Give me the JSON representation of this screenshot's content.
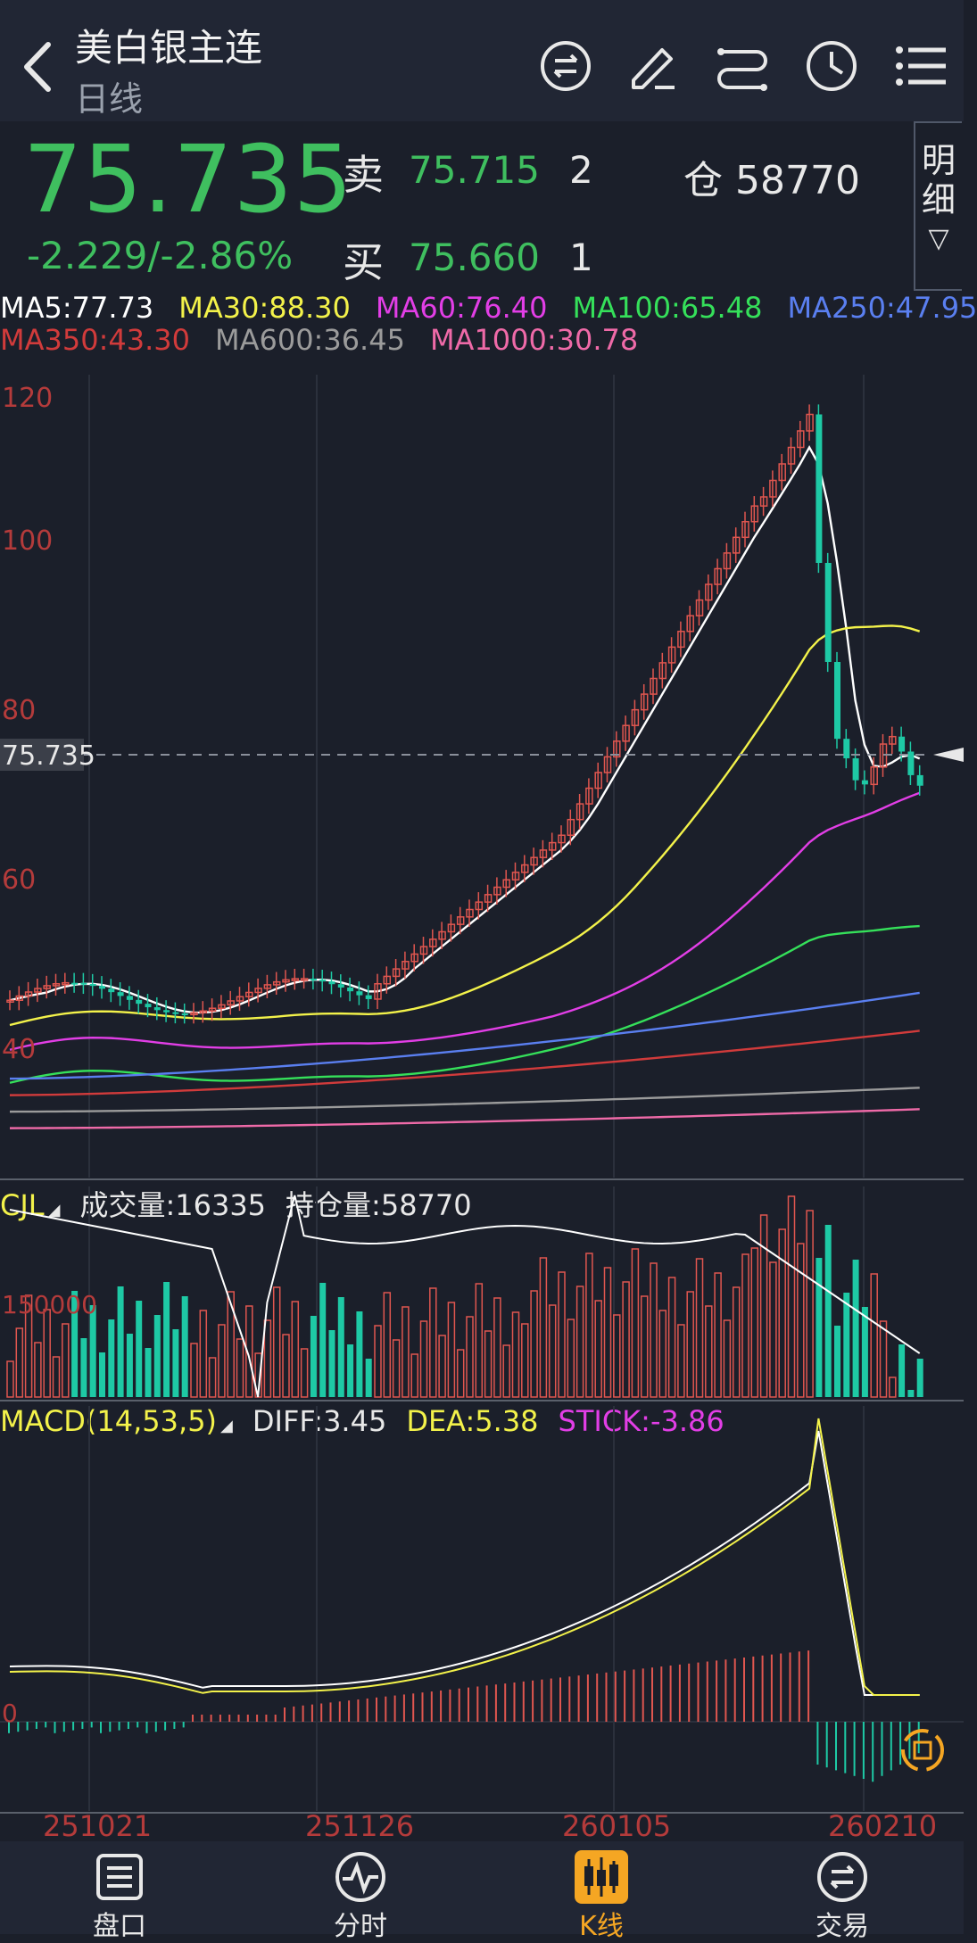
{
  "header": {
    "title": "美白银主连",
    "subtitle": "日线",
    "icons": [
      "back-icon",
      "switch-contract-icon",
      "draw-icon",
      "compare-icon",
      "clock-icon",
      "menu-icon"
    ]
  },
  "quote": {
    "last_price": "75.735",
    "change": "-2.229/-2.86%",
    "sell_label": "卖",
    "sell_price": "75.715",
    "sell_qty": "2",
    "buy_label": "买",
    "buy_price": "75.660",
    "buy_qty": "1",
    "open_interest": "仓 58770",
    "detail_label_1": "明",
    "detail_label_2": "细",
    "detail_arrow": "▽"
  },
  "ma_legend": {
    "row1": [
      {
        "text": "MA5:77.73",
        "color": "#ffffff"
      },
      {
        "text": "MA30:88.30",
        "color": "#f3f24a"
      },
      {
        "text": "MA60:76.40",
        "color": "#e23ee6"
      },
      {
        "text": "MA100:65.48",
        "color": "#35e05a"
      },
      {
        "text": "MA250:47.95",
        "color": "#5a7ff0"
      }
    ],
    "row2": [
      {
        "text": "MA350:43.30",
        "color": "#d13b3b"
      },
      {
        "text": "MA600:36.45",
        "color": "#9b9b9b"
      },
      {
        "text": "MA1000:30.78",
        "color": "#ef6aa8"
      }
    ]
  },
  "price_chart": {
    "y_ticks": [
      "120",
      "100",
      "80",
      "60",
      "40"
    ],
    "current_price_tag": "75.735"
  },
  "volume_panel": {
    "name": "CJL",
    "volume": "成交量:16335",
    "oi": "持仓量:58770",
    "tick": "150000"
  },
  "macd_panel": {
    "name": "MACD(14,53,5)",
    "diff": "DIFF:3.45",
    "dea": "DEA:5.38",
    "stick": "STICK:-3.86",
    "zero": "0"
  },
  "x_axis": [
    "251021",
    "251126",
    "260105",
    "260210"
  ],
  "nav": [
    {
      "label": "盘口",
      "icon": "orderbook-icon",
      "active": false
    },
    {
      "label": "分时",
      "icon": "timeshare-icon",
      "active": false
    },
    {
      "label": "K线",
      "icon": "kline-icon",
      "active": true
    },
    {
      "label": "交易",
      "icon": "trade-icon",
      "active": false
    }
  ],
  "colors": {
    "up": "#e0564f",
    "down": "#1ec9a5",
    "accent": "#f5a623",
    "green_text": "#3fbf5f"
  }
}
